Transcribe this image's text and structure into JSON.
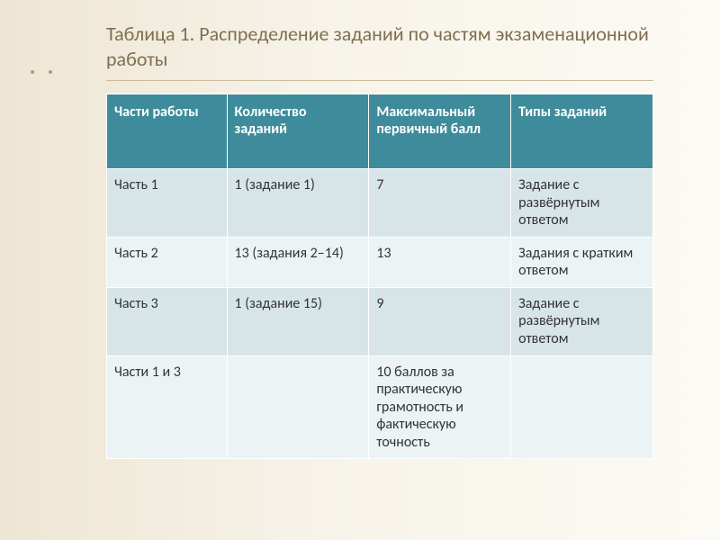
{
  "title": "Таблица 1. Распределение заданий по частям экзаменационной работы",
  "table": {
    "type": "table",
    "header_bg": "#3e8c9b",
    "header_color": "#ffffff",
    "row_odd_bg": "#d7e5e8",
    "row_even_bg": "#ecf3f4",
    "border_color": "#ffffff",
    "font_size_pt": 12,
    "columns": [
      {
        "label": "Части работы",
        "width_pct": 22
      },
      {
        "label": "Количество заданий",
        "width_pct": 26
      },
      {
        "label": "Максимальный первичный балл",
        "width_pct": 26
      },
      {
        "label": "Типы заданий",
        "width_pct": 26
      }
    ],
    "rows": [
      [
        "Часть 1",
        "1  (задание 1)",
        "7",
        "Задание с развёрнутым ответом"
      ],
      [
        "Часть 2",
        "13 (задания 2–14)",
        "13",
        "Задания с кратким ответом"
      ],
      [
        "Часть 3",
        "1 (задание 15)",
        "9",
        "Задание с развёрнутым ответом"
      ],
      [
        "Части 1 и 3",
        "",
        "10 баллов за практическую грамотность и фактическую точность",
        ""
      ]
    ]
  },
  "colors": {
    "slide_bg_left": "#eee6d4",
    "slide_bg_right": "#fcfaf4",
    "title_color": "#7f7050",
    "title_rule": "#c9bd9c"
  }
}
